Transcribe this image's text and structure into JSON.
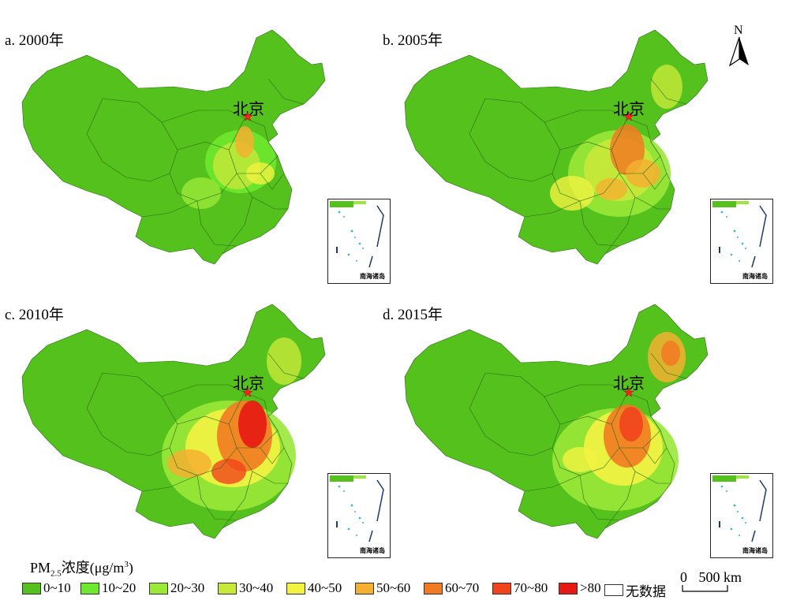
{
  "panels": [
    {
      "title": "a. 2000年",
      "year": 2000,
      "beijing_label": "北京"
    },
    {
      "title": "b. 2005年",
      "year": 2005,
      "beijing_label": "北京"
    },
    {
      "title": "c. 2010年",
      "year": 2010,
      "beijing_label": "北京"
    },
    {
      "title": "d. 2015年",
      "year": 2015,
      "beijing_label": "北京"
    }
  ],
  "inset_label": "南海诸岛",
  "north_label": "N",
  "legend": {
    "title_main": "PM",
    "title_sub": "2.5",
    "title_rest": "浓度(μg/m",
    "title_sup": "3",
    "title_end": ")",
    "items": [
      {
        "label": "0~10",
        "color": "#55c11c"
      },
      {
        "label": "10~20",
        "color": "#6ee82e"
      },
      {
        "label": "20~30",
        "color": "#9be83a"
      },
      {
        "label": "30~40",
        "color": "#c8e83a"
      },
      {
        "label": "40~50",
        "color": "#f3f241"
      },
      {
        "label": "50~60",
        "color": "#f5b030"
      },
      {
        "label": "60~70",
        "color": "#f27a22"
      },
      {
        "label": "70~80",
        "color": "#f1441c"
      },
      {
        "label": ">80",
        "color": "#e61a12"
      },
      {
        "label": "无数据",
        "color": "#ffffff"
      }
    ]
  },
  "scale": {
    "zero": "0",
    "value": "500",
    "unit": "km"
  }
}
